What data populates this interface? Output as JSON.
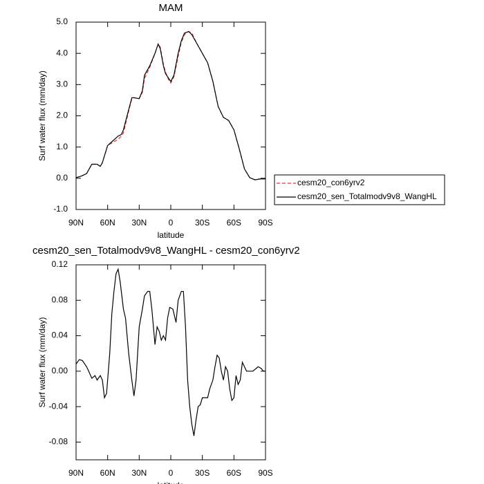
{
  "chart_data": [
    {
      "type": "line",
      "title": "MAM",
      "ylabel": "Surf water flux (mm/day)",
      "xlabel": "latitude",
      "xlim": [
        90,
        -90
      ],
      "ylim": [
        -1,
        5
      ],
      "xticks": [
        {
          "value": 90,
          "label": "90N"
        },
        {
          "value": 60,
          "label": "60N"
        },
        {
          "value": 30,
          "label": "30N"
        },
        0,
        {
          "value": -30,
          "label": "30S"
        },
        {
          "value": -60,
          "label": "60S"
        },
        {
          "value": -90,
          "label": "90S"
        }
      ],
      "yticks": [
        {
          "value": -1,
          "label": "-1.0"
        },
        {
          "value": 0,
          "label": "0.0"
        },
        {
          "value": 1,
          "label": "1.0"
        },
        {
          "value": 2,
          "label": "2.0"
        },
        {
          "value": 3,
          "label": "3.0"
        },
        {
          "value": 4,
          "label": "4.0"
        },
        {
          "value": 5,
          "label": "5.0"
        }
      ],
      "legend": "right",
      "x": [
        90,
        85,
        80,
        75,
        70,
        67,
        65,
        60,
        55,
        50,
        47,
        45,
        40,
        37,
        35,
        30,
        27,
        25,
        20,
        15,
        12,
        10,
        7,
        5,
        2,
        0,
        -3,
        -7,
        -10,
        -13,
        -17,
        -20,
        -25,
        -30,
        -35,
        -40,
        -45,
        -50,
        -55,
        -60,
        -65,
        -70,
        -75,
        -80,
        -85,
        -90
      ],
      "series": [
        {
          "name": "cesm20_con6yrv2",
          "color": "#e03030",
          "line_style": "dashed",
          "values": [
            0.02,
            0.07,
            0.15,
            0.45,
            0.45,
            0.38,
            0.5,
            1.05,
            1.15,
            1.25,
            1.35,
            1.45,
            2.15,
            2.55,
            2.58,
            2.55,
            2.75,
            3.2,
            3.55,
            4.0,
            4.3,
            4.2,
            3.65,
            3.4,
            3.15,
            3.05,
            3.25,
            3.9,
            4.35,
            4.6,
            4.7,
            4.65,
            4.3,
            4.0,
            3.7,
            3.1,
            2.3,
            1.95,
            1.85,
            1.55,
            0.95,
            0.3,
            0.02,
            -0.05,
            -0.02,
            -0.02
          ]
        },
        {
          "name": "cesm20_sen_Totalmodv9v8_WangHL",
          "color": "#000000",
          "line_style": "solid",
          "values": [
            0.02,
            0.07,
            0.15,
            0.45,
            0.45,
            0.38,
            0.5,
            1.05,
            1.2,
            1.35,
            1.4,
            1.55,
            2.2,
            2.58,
            2.58,
            2.55,
            2.8,
            3.3,
            3.6,
            4.0,
            4.3,
            4.15,
            3.6,
            3.35,
            3.2,
            3.1,
            3.3,
            4.0,
            4.4,
            4.65,
            4.7,
            4.6,
            4.3,
            4.0,
            3.7,
            3.1,
            2.3,
            1.95,
            1.85,
            1.55,
            0.95,
            0.3,
            0.02,
            -0.05,
            -0.02,
            -0.02
          ]
        }
      ]
    },
    {
      "type": "line",
      "title": "cesm20_sen_Totalmodv9v8_WangHL - cesm20_con6yrv2",
      "ylabel": "Surf water flux (mm/day)",
      "xlabel": "latitude",
      "xlim": [
        90,
        -90
      ],
      "ylim": [
        -0.1,
        0.12
      ],
      "xticks": [
        {
          "value": 90,
          "label": "90N"
        },
        {
          "value": 60,
          "label": "60N"
        },
        {
          "value": 30,
          "label": "30N"
        },
        0,
        {
          "value": -30,
          "label": "30S"
        },
        {
          "value": -60,
          "label": "60S"
        },
        {
          "value": -90,
          "label": "90S"
        }
      ],
      "yticks": [
        -0.08,
        -0.04,
        {
          "value": 0,
          "label": "0.00"
        },
        0.04,
        0.08,
        0.12
      ],
      "x": [
        90,
        87,
        84,
        80,
        78,
        75,
        72,
        70,
        67,
        65,
        63,
        61,
        58,
        56,
        54,
        52,
        50,
        48,
        45,
        43,
        40,
        37,
        35,
        33,
        30,
        27,
        25,
        22,
        20,
        18,
        15,
        13,
        11,
        9,
        7,
        5,
        3,
        1,
        -2,
        -5,
        -7,
        -10,
        -12,
        -14,
        -16,
        -18,
        -20,
        -22,
        -24,
        -26,
        -28,
        -30,
        -32,
        -35,
        -37,
        -40,
        -42,
        -44,
        -46,
        -48,
        -50,
        -52,
        -54,
        -56,
        -58,
        -60,
        -62,
        -64,
        -66,
        -68,
        -70,
        -72,
        -75,
        -78,
        -80,
        -83,
        -86,
        -88,
        -90
      ],
      "series": [
        {
          "color": "#000000",
          "line_style": "solid",
          "values": [
            0.008,
            0.013,
            0.012,
            0.005,
            0.0,
            -0.008,
            -0.005,
            -0.01,
            -0.005,
            -0.01,
            -0.03,
            -0.025,
            0.02,
            0.065,
            0.09,
            0.11,
            0.115,
            0.1,
            0.07,
            0.06,
            0.02,
            -0.01,
            -0.028,
            -0.01,
            0.05,
            0.07,
            0.085,
            0.09,
            0.09,
            0.07,
            0.03,
            0.05,
            0.045,
            0.035,
            0.04,
            0.035,
            0.06,
            0.072,
            0.07,
            0.055,
            0.08,
            0.09,
            0.09,
            0.05,
            -0.01,
            -0.04,
            -0.06,
            -0.073,
            -0.055,
            -0.04,
            -0.038,
            -0.03,
            -0.03,
            -0.03,
            -0.02,
            -0.01,
            0.005,
            0.018,
            0.015,
            0.0,
            -0.01,
            0.005,
            0.0,
            -0.02,
            -0.033,
            -0.03,
            -0.005,
            -0.015,
            -0.01,
            0.01,
            0.005,
            0.0,
            0.0,
            0.0,
            0.002,
            0.005,
            0.003,
            0.0,
            0.0
          ]
        }
      ]
    }
  ]
}
